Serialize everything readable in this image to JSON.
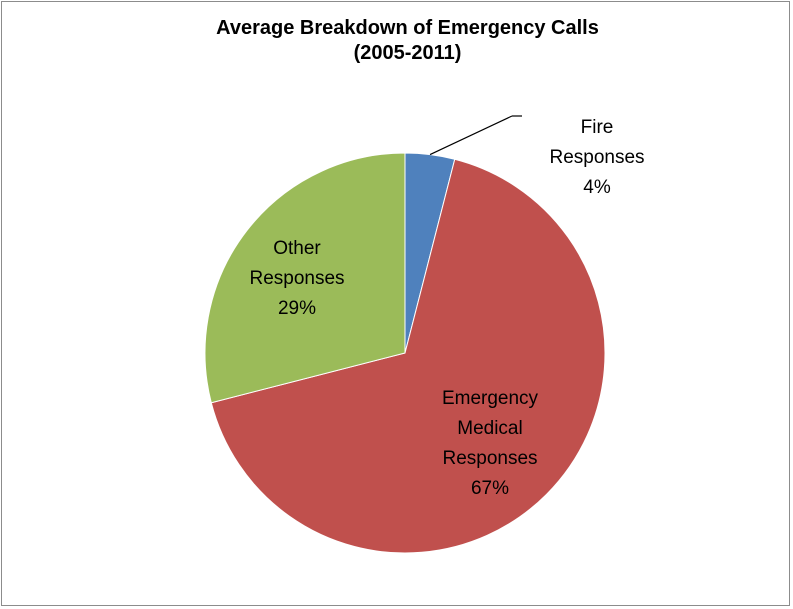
{
  "chart_data": {
    "type": "pie",
    "title": [
      "Average Breakdown of Emergency Calls",
      "(2005-2011)"
    ],
    "slices": [
      {
        "key": "fire",
        "label_lines": [
          "Fire",
          "Responses",
          "4%"
        ],
        "value": 4,
        "color": "#4f81bd"
      },
      {
        "key": "medical",
        "label_lines": [
          "Emergency",
          "Medical",
          "Responses",
          "67%"
        ],
        "value": 67,
        "color": "#c0504d"
      },
      {
        "key": "other",
        "label_lines": [
          "Other",
          "Responses",
          "29%"
        ],
        "value": 29,
        "color": "#9bbb59"
      }
    ],
    "legend": "none",
    "grid": false
  }
}
